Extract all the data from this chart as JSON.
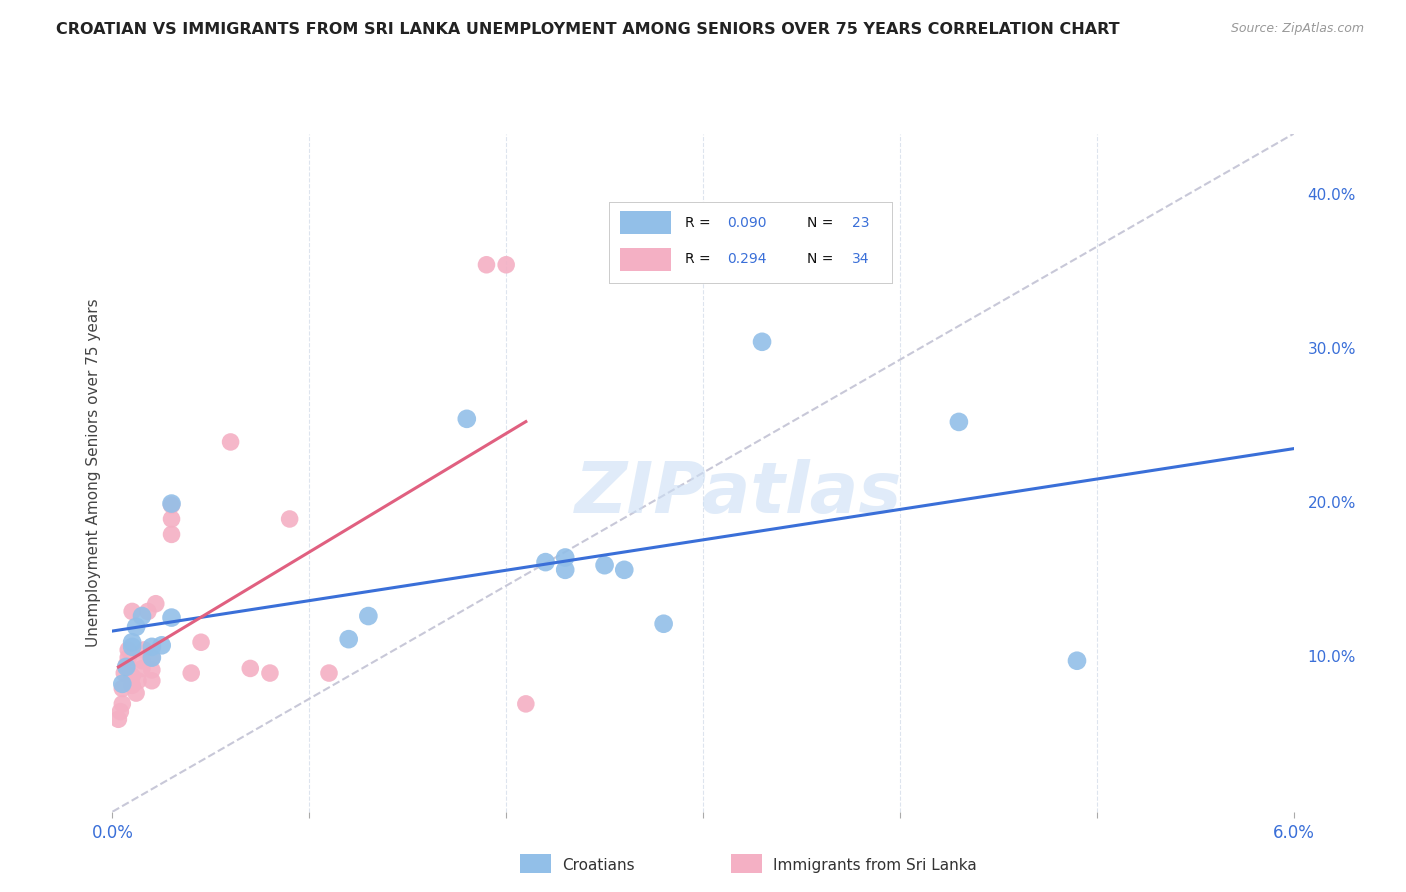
{
  "title": "CROATIAN VS IMMIGRANTS FROM SRI LANKA UNEMPLOYMENT AMONG SENIORS OVER 75 YEARS CORRELATION CHART",
  "source": "Source: ZipAtlas.com",
  "ylabel": "Unemployment Among Seniors over 75 years",
  "xlim": [
    0.0,
    0.06
  ],
  "ylim": [
    0.0,
    0.44
  ],
  "x_tick_positions": [
    0.0,
    0.01,
    0.02,
    0.03,
    0.04,
    0.05,
    0.06
  ],
  "x_tick_labels": [
    "0.0%",
    "",
    "",
    "",
    "",
    "",
    "6.0%"
  ],
  "y_ticks_right": [
    0.0,
    0.1,
    0.2,
    0.3,
    0.4
  ],
  "y_tick_labels_right": [
    "",
    "10.0%",
    "20.0%",
    "30.0%",
    "40.0%"
  ],
  "croatians_x": [
    0.0005,
    0.0007,
    0.001,
    0.001,
    0.0012,
    0.0015,
    0.002,
    0.002,
    0.0025,
    0.003,
    0.003,
    0.012,
    0.013,
    0.018,
    0.022,
    0.023,
    0.023,
    0.025,
    0.026,
    0.028,
    0.033,
    0.043,
    0.049
  ],
  "croatians_y": [
    0.083,
    0.094,
    0.107,
    0.11,
    0.12,
    0.127,
    0.1,
    0.107,
    0.108,
    0.126,
    0.2,
    0.112,
    0.127,
    0.255,
    0.162,
    0.157,
    0.165,
    0.16,
    0.157,
    0.122,
    0.305,
    0.253,
    0.098
  ],
  "srilanka_x": [
    0.0003,
    0.0004,
    0.0005,
    0.0005,
    0.0006,
    0.0007,
    0.0008,
    0.0008,
    0.001,
    0.001,
    0.001,
    0.0012,
    0.0013,
    0.0015,
    0.0015,
    0.0016,
    0.0018,
    0.002,
    0.002,
    0.002,
    0.0022,
    0.003,
    0.003,
    0.003,
    0.004,
    0.0045,
    0.006,
    0.007,
    0.008,
    0.009,
    0.011,
    0.019,
    0.02,
    0.021
  ],
  "srilanka_y": [
    0.06,
    0.065,
    0.07,
    0.08,
    0.09,
    0.095,
    0.1,
    0.105,
    0.082,
    0.088,
    0.13,
    0.077,
    0.085,
    0.093,
    0.098,
    0.105,
    0.13,
    0.085,
    0.092,
    0.1,
    0.135,
    0.18,
    0.19,
    0.199,
    0.09,
    0.11,
    0.24,
    0.093,
    0.09,
    0.19,
    0.09,
    0.355,
    0.355,
    0.07
  ],
  "blue_color": "#92bfe8",
  "pink_color": "#f4b0c4",
  "blue_line_color": "#3a6fd8",
  "pink_line_color": "#e06080",
  "diagonal_color": "#c8c8d8",
  "R_croatians": 0.09,
  "N_croatians": 23,
  "R_srilanka": 0.294,
  "N_srilanka": 34,
  "watermark": "ZIPatlas",
  "background_color": "#ffffff",
  "grid_color": "#dde4ee"
}
